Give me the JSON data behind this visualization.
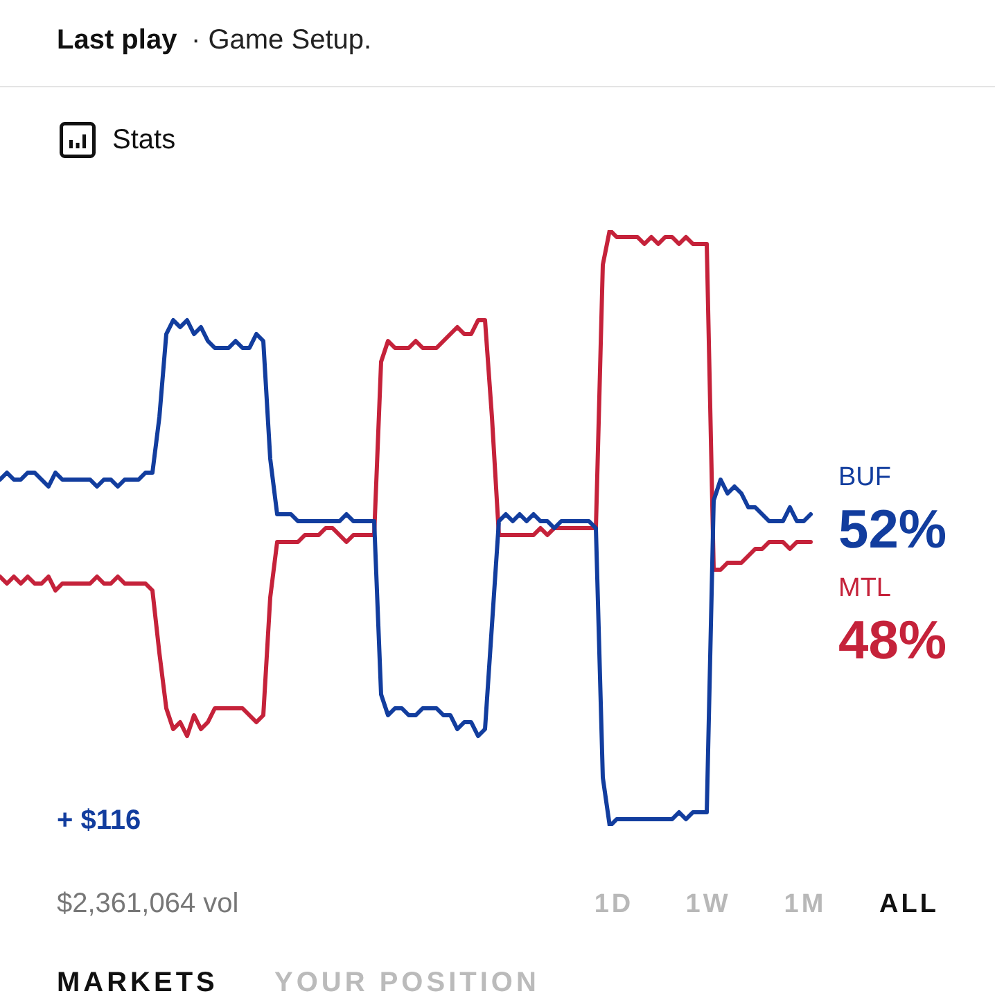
{
  "chart_data": {
    "type": "line",
    "title": "Stats",
    "legend": false,
    "grid": false,
    "tick_labels": false,
    "marker": "none",
    "line_style": "solid",
    "categories": [
      null,
      null,
      null,
      null,
      null,
      null,
      null,
      null,
      null,
      null,
      null,
      null,
      null,
      null,
      null,
      null,
      null,
      null,
      null,
      null,
      null,
      null,
      null,
      null,
      null,
      null,
      null,
      null,
      null,
      null,
      null,
      null,
      null,
      null,
      null,
      null,
      null,
      null,
      null,
      null,
      null,
      null,
      null,
      null,
      null,
      null,
      null,
      null,
      null,
      null,
      null,
      null,
      null,
      null,
      null,
      null,
      null,
      null,
      null,
      null,
      null,
      null,
      null,
      null,
      null,
      null,
      null,
      null,
      null,
      null,
      null,
      null,
      null,
      null,
      null,
      null,
      null,
      null,
      null,
      null,
      null,
      null,
      null,
      null,
      null,
      null,
      null,
      null,
      null,
      null,
      null,
      null,
      null,
      null,
      null,
      null,
      null,
      null,
      null,
      null,
      null,
      null,
      null,
      null,
      null,
      null,
      null,
      null,
      null,
      null,
      null,
      null,
      null,
      null,
      null,
      null,
      null,
      null
    ],
    "series": [
      {
        "name": "BUF",
        "color": "#123d9e",
        "values": [
          57,
          58,
          57,
          57,
          58,
          58,
          57,
          56,
          58,
          57,
          57,
          57,
          57,
          57,
          56,
          57,
          57,
          56,
          57,
          57,
          57,
          58,
          58,
          66,
          78,
          80,
          79,
          80,
          78,
          79,
          77,
          76,
          76,
          76,
          77,
          76,
          76,
          78,
          77,
          60,
          52,
          52,
          52,
          51,
          51,
          51,
          51,
          51,
          51,
          51,
          52,
          51,
          51,
          51,
          51,
          26,
          23,
          24,
          24,
          23,
          23,
          24,
          24,
          24,
          23,
          23,
          21,
          22,
          22,
          20,
          21,
          36,
          51,
          52,
          51,
          52,
          51,
          52,
          51,
          51,
          50,
          51,
          51,
          51,
          51,
          51,
          50,
          14,
          7,
          8,
          8,
          8,
          8,
          8,
          8,
          8,
          8,
          8,
          9,
          8,
          9,
          9,
          9,
          54,
          57,
          55,
          56,
          55,
          53,
          53,
          52,
          51,
          51,
          51,
          53,
          51,
          51,
          52
        ],
        "value_labels": [
          null,
          null,
          null,
          null,
          null,
          null,
          null,
          null,
          null,
          null,
          null,
          null,
          null,
          null,
          null,
          null,
          null,
          null,
          null,
          null,
          null,
          null,
          null,
          null,
          null,
          null,
          null,
          null,
          null,
          null,
          null,
          null,
          null,
          null,
          null,
          null,
          null,
          null,
          null,
          null,
          null,
          null,
          null,
          null,
          null,
          null,
          null,
          null,
          null,
          null,
          null,
          null,
          null,
          null,
          null,
          null,
          null,
          null,
          null,
          null,
          null,
          null,
          null,
          null,
          null,
          null,
          null,
          null,
          null,
          null,
          null,
          null,
          null,
          null,
          null,
          null,
          null,
          null,
          null,
          null,
          null,
          null,
          null,
          null,
          null,
          null,
          null,
          null,
          null,
          null,
          null,
          null,
          null,
          null,
          null,
          null,
          null,
          null,
          null,
          null,
          null,
          null,
          null,
          null,
          null,
          null,
          null,
          null,
          null,
          null,
          null,
          null,
          null,
          null,
          null,
          null,
          null,
          "52%"
        ]
      },
      {
        "name": "MTL",
        "color": "#c5223a",
        "values": [
          43,
          42,
          43,
          42,
          43,
          42,
          42,
          43,
          41,
          42,
          42,
          42,
          42,
          42,
          43,
          42,
          42,
          43,
          42,
          42,
          42,
          42,
          41,
          32,
          24,
          21,
          22,
          20,
          23,
          21,
          22,
          24,
          24,
          24,
          24,
          24,
          23,
          22,
          23,
          40,
          48,
          48,
          48,
          48,
          49,
          49,
          49,
          50,
          50,
          49,
          48,
          49,
          49,
          49,
          49,
          74,
          77,
          76,
          76,
          76,
          77,
          76,
          76,
          76,
          77,
          78,
          79,
          78,
          78,
          80,
          80,
          66,
          49,
          49,
          49,
          49,
          49,
          49,
          50,
          49,
          50,
          50,
          50,
          50,
          50,
          50,
          50,
          88,
          93,
          92,
          92,
          92,
          92,
          91,
          92,
          91,
          92,
          92,
          91,
          92,
          91,
          91,
          91,
          44,
          44,
          45,
          45,
          45,
          46,
          47,
          47,
          48,
          48,
          48,
          47,
          48,
          48,
          48
        ],
        "value_labels": [
          null,
          null,
          null,
          null,
          null,
          null,
          null,
          null,
          null,
          null,
          null,
          null,
          null,
          null,
          null,
          null,
          null,
          null,
          null,
          null,
          null,
          null,
          null,
          null,
          null,
          null,
          null,
          null,
          null,
          null,
          null,
          null,
          null,
          null,
          null,
          null,
          null,
          null,
          null,
          null,
          null,
          null,
          null,
          null,
          null,
          null,
          null,
          null,
          null,
          null,
          null,
          null,
          null,
          null,
          null,
          null,
          null,
          null,
          null,
          null,
          null,
          null,
          null,
          null,
          null,
          null,
          null,
          null,
          null,
          null,
          null,
          null,
          null,
          null,
          null,
          null,
          null,
          null,
          null,
          null,
          null,
          null,
          null,
          null,
          null,
          null,
          null,
          null,
          null,
          null,
          null,
          null,
          null,
          null,
          null,
          null,
          null,
          null,
          null,
          null,
          null,
          null,
          null,
          null,
          null,
          null,
          null,
          null,
          null,
          null,
          null,
          null,
          null,
          null,
          null,
          null,
          null,
          "48%"
        ]
      }
    ],
    "annotations": [
      "Last play",
      "· Game Setup.",
      "+ $116",
      "$2,361,064 vol",
      "1D",
      "1W",
      "1M",
      "ALL",
      "MARKETS",
      "YOUR POSITION"
    ]
  }
}
